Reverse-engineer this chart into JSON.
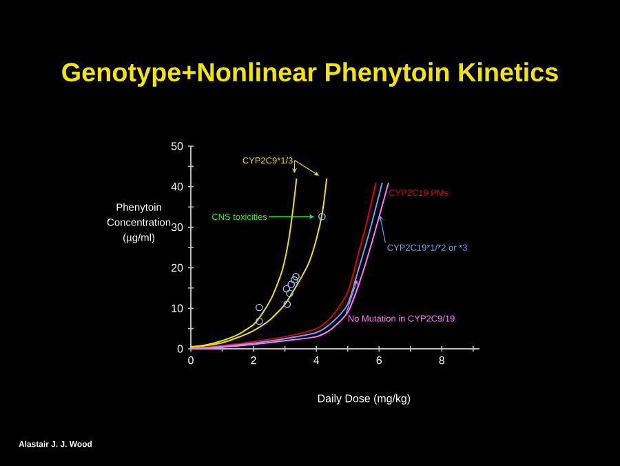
{
  "chart_data": {
    "type": "line",
    "title": "Genotype+Nonlinear Phenytoin Kinetics",
    "xlabel": "Daily Dose (mg/kg)",
    "ylabel": "Phenytoin Concentration (µg/ml)",
    "xlim": [
      0,
      9.2
    ],
    "ylim": [
      0,
      50
    ],
    "xticks": [
      0,
      {
        "value": 1,
        "label": null
      },
      2,
      {
        "value": 3,
        "label": null
      },
      4,
      {
        "value": 5,
        "label": null
      },
      6,
      {
        "value": 7,
        "label": null
      },
      8,
      {
        "value": 9,
        "label": null
      }
    ],
    "yticks": [
      0,
      {
        "value": 5,
        "label": null
      },
      10,
      {
        "value": 15,
        "label": null
      },
      20,
      {
        "value": 25,
        "label": null
      },
      30,
      {
        "value": 35,
        "label": null
      },
      40,
      {
        "value": 45,
        "label": null
      },
      50
    ],
    "series": [
      {
        "color": "#f5e100",
        "x": [
          0,
          0.5,
          1,
          1.5,
          2,
          2.3,
          2.6,
          2.9,
          3.1,
          3.25,
          3.37
        ],
        "values": [
          0.5,
          1,
          2,
          3.5,
          6,
          9,
          13,
          19,
          26,
          34,
          42
        ]
      },
      {
        "color": "#f5e100",
        "x": [
          0,
          0.5,
          1,
          1.5,
          2,
          2.5,
          3,
          3.4,
          3.75,
          4.0,
          4.2,
          4.33
        ],
        "values": [
          0.3,
          0.8,
          1.5,
          2.8,
          4.5,
          7,
          11,
          16,
          21,
          27,
          34,
          42
        ]
      },
      {
        "name": "CYP2C19 PMs",
        "color": "#e00000",
        "x": [
          0,
          1,
          2,
          3,
          4,
          4.5,
          5,
          5.36,
          5.6,
          5.9
        ],
        "values": [
          0,
          0.8,
          1.8,
          3,
          5,
          8,
          14,
          24,
          31,
          41
        ]
      },
      {
        "name": "CYP2C19*1/*2 or *3",
        "color": "#6fa0ff",
        "x": [
          0,
          1,
          2,
          3,
          4,
          4.5,
          5,
          5.36,
          5.7,
          6.1
        ],
        "values": [
          0,
          0.6,
          1.4,
          2.5,
          4,
          6.5,
          11,
          20,
          29,
          41
        ]
      },
      {
        "name": "No Mutation in CYP2C9/19",
        "color": "#ff77ff",
        "x": [
          0,
          1,
          2,
          3,
          4,
          4.5,
          5,
          5.36,
          5.8,
          6.3
        ],
        "values": [
          0,
          0.4,
          1.1,
          2,
          3,
          5,
          9,
          16,
          27,
          41
        ]
      },
      {
        "type": "scatter",
        "marker": "circle",
        "color": "#9cc4ff",
        "x": [
          2.18,
          2.18,
          3.07,
          3.05,
          3.2,
          3.3,
          3.35,
          3.15,
          4.18
        ],
        "values": [
          10.2,
          6.8,
          11,
          14.8,
          15.9,
          17,
          17.8,
          13.7,
          32.6
        ]
      }
    ],
    "annotations": [
      {
        "text": "CYP2C9*1/3",
        "x": 3.3,
        "y": 42
      },
      {
        "text": "CNS toxicities",
        "x": 4.1,
        "y": 32.6
      },
      "Alastair J. J. Wood"
    ]
  }
}
